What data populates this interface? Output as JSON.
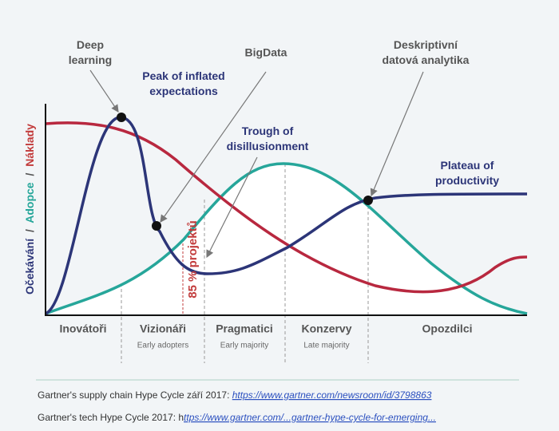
{
  "y_axis_label": {
    "parts": [
      "Očekávání",
      "Adopce",
      "Náklady"
    ],
    "separator": "/"
  },
  "annotations": {
    "deep_learning": [
      "Deep",
      "learning"
    ],
    "bigdata": "BigData",
    "peak": [
      "Peak of inflated",
      "expectations"
    ],
    "trough": [
      "Trough of",
      "disillusionment"
    ],
    "descriptive": [
      "Deskriptivní",
      "datová analytika"
    ],
    "plateau": [
      "Plateau of",
      "productivity"
    ],
    "projects": "85 % projektů"
  },
  "phases": [
    {
      "name": "Inovátoři"
    },
    {
      "name": "Vizionáři",
      "sub": "Early adopters"
    },
    {
      "name": "Pragmatici",
      "sub": "Early majority"
    },
    {
      "name": "Konzervy",
      "sub": "Late majority"
    },
    {
      "name": "Opozdilci"
    }
  ],
  "sources": [
    {
      "text": "Gartner's supply chain Hype Cycle září 2017: ",
      "link": "https://www.gartner.com/newsroom/id/3798863"
    },
    {
      "text": "Gartner's tech Hype Cycle 2017: h",
      "link": "ttps://www.gartner.com/...gartner-hype-cycle-for-emerging..."
    }
  ]
}
